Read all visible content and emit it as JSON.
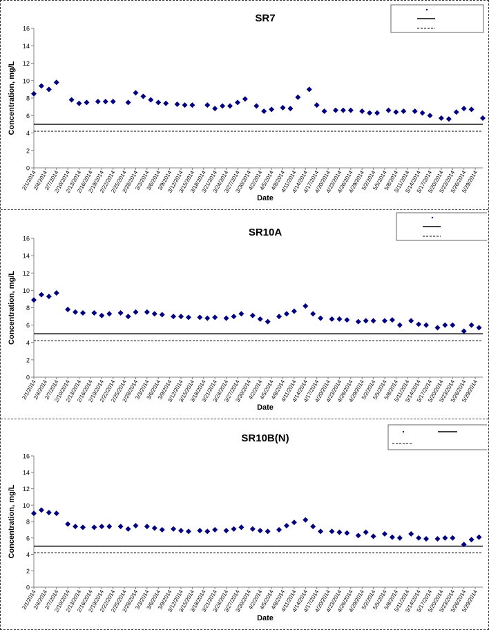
{
  "colors": {
    "marker": "#000080",
    "axis": "#808080",
    "line": "#000000"
  },
  "chart_data": [
    {
      "type": "scatter",
      "title": "SR7",
      "xlabel": "Date",
      "ylabel": "Concentration, mg/L",
      "ylim": [
        0,
        16
      ],
      "yticks": [
        0,
        2,
        4,
        6,
        8,
        10,
        12,
        14,
        16
      ],
      "grid": false,
      "legend_position": "top-right",
      "x_tick_labels": [
        "2/1/2014",
        "2/4/2014",
        "2/7/2014",
        "2/10/2014",
        "2/13/2014",
        "2/16/2014",
        "2/19/2014",
        "2/22/2014",
        "2/25/2014",
        "2/28/2014",
        "3/3/2014",
        "3/6/2014",
        "3/9/2014",
        "3/12/2014",
        "3/15/2014",
        "3/18/2014",
        "3/21/2014",
        "3/24/2014",
        "3/27/2014",
        "3/30/2014",
        "4/2/2014",
        "4/5/2014",
        "4/8/2014",
        "4/11/2014",
        "4/14/2014",
        "4/17/2014",
        "4/20/2014",
        "4/23/2014",
        "4/26/2014",
        "4/29/2014",
        "5/2/2014",
        "5/5/2014",
        "5/8/2014",
        "5/11/2014",
        "5/14/2014",
        "5/17/2014",
        "5/20/2014",
        "5/23/2014",
        "5/26/2014",
        "5/29/2014"
      ],
      "x_range": [
        "2/1/2014",
        "5/31/2014"
      ],
      "reference_lines": [
        {
          "value": 5,
          "style": "solid"
        },
        {
          "value": 4.2,
          "style": "dashed"
        }
      ],
      "series": [
        {
          "x": [
            "2/1/2014",
            "2/3/2014",
            "2/5/2014",
            "2/7/2014",
            "2/11/2014",
            "2/13/2014",
            "2/15/2014",
            "2/18/2014",
            "2/20/2014",
            "2/22/2014",
            "2/26/2014",
            "2/28/2014",
            "3/2/2014",
            "3/4/2014",
            "3/6/2014",
            "3/8/2014",
            "3/11/2014",
            "3/13/2014",
            "3/15/2014",
            "3/19/2014",
            "3/21/2014",
            "3/23/2014",
            "3/25/2014",
            "3/27/2014",
            "3/29/2014",
            "4/1/2014",
            "4/3/2014",
            "4/5/2014",
            "4/8/2014",
            "4/10/2014",
            "4/12/2014",
            "4/15/2014",
            "4/17/2014",
            "4/19/2014",
            "4/22/2014",
            "4/24/2014",
            "4/26/2014",
            "4/29/2014",
            "5/1/2014",
            "5/3/2014",
            "5/6/2014",
            "5/8/2014",
            "5/10/2014",
            "5/13/2014",
            "5/15/2014",
            "5/17/2014",
            "5/20/2014",
            "5/22/2014",
            "5/24/2014",
            "5/26/2014",
            "5/28/2014",
            "5/31/2014"
          ],
          "y": [
            8.5,
            9.4,
            9.0,
            9.8,
            7.8,
            7.4,
            7.5,
            7.6,
            7.6,
            7.6,
            7.5,
            8.6,
            8.2,
            7.8,
            7.5,
            7.4,
            7.3,
            7.2,
            7.2,
            7.2,
            6.8,
            7.1,
            7.1,
            7.5,
            7.9,
            7.1,
            6.5,
            6.7,
            6.9,
            6.8,
            8.1,
            9.0,
            7.2,
            6.5,
            6.6,
            6.6,
            6.6,
            6.5,
            6.3,
            6.3,
            6.6,
            6.4,
            6.5,
            6.5,
            6.3,
            6.0,
            5.7,
            5.6,
            6.4,
            6.8,
            6.7,
            5.7
          ]
        }
      ]
    },
    {
      "type": "scatter",
      "title": "SR10A",
      "xlabel": "Date",
      "ylabel": "Concentration, mg/L",
      "ylim": [
        0,
        16
      ],
      "yticks": [
        0,
        2,
        4,
        6,
        8,
        10,
        12,
        14,
        16
      ],
      "grid": false,
      "legend_position": "top-right",
      "x_tick_labels": [
        "2/1/2014",
        "2/4/2014",
        "2/7/2014",
        "2/10/2014",
        "2/13/2014",
        "2/16/2014",
        "2/19/2014",
        "2/22/2014",
        "2/25/2014",
        "2/28/2014",
        "3/3/2014",
        "3/6/2014",
        "3/9/2014",
        "3/12/2014",
        "3/15/2014",
        "3/18/2014",
        "3/21/2014",
        "3/24/2014",
        "3/27/2014",
        "3/30/2014",
        "4/2/2014",
        "4/5/2014",
        "4/8/2014",
        "4/11/2014",
        "4/14/2014",
        "4/17/2014",
        "4/20/2014",
        "4/23/2014",
        "4/26/2014",
        "4/29/2014",
        "5/2/2014",
        "5/5/2014",
        "5/8/2014",
        "5/11/2014",
        "5/14/2014",
        "5/17/2014",
        "5/20/2014",
        "5/23/2014",
        "5/26/2014",
        "5/29/2014"
      ],
      "x_range": [
        "2/1/2014",
        "5/31/2014"
      ],
      "reference_lines": [
        {
          "value": 5,
          "style": "solid"
        },
        {
          "value": 4.2,
          "style": "dashed"
        }
      ],
      "series": [
        {
          "x": [
            "2/1/2014",
            "2/3/2014",
            "2/5/2014",
            "2/7/2014",
            "2/10/2014",
            "2/12/2014",
            "2/14/2014",
            "2/17/2014",
            "2/19/2014",
            "2/21/2014",
            "2/24/2014",
            "2/26/2014",
            "2/28/2014",
            "3/3/2014",
            "3/5/2014",
            "3/7/2014",
            "3/10/2014",
            "3/12/2014",
            "3/14/2014",
            "3/17/2014",
            "3/19/2014",
            "3/21/2014",
            "3/24/2014",
            "3/26/2014",
            "3/28/2014",
            "3/31/2014",
            "4/2/2014",
            "4/4/2014",
            "4/7/2014",
            "4/9/2014",
            "4/11/2014",
            "4/14/2014",
            "4/16/2014",
            "4/18/2014",
            "4/21/2014",
            "4/23/2014",
            "4/25/2014",
            "4/28/2014",
            "4/30/2014",
            "5/2/2014",
            "5/5/2014",
            "5/7/2014",
            "5/9/2014",
            "5/12/2014",
            "5/14/2014",
            "5/16/2014",
            "5/19/2014",
            "5/21/2014",
            "5/23/2014",
            "5/26/2014",
            "5/28/2014",
            "5/30/2014"
          ],
          "y": [
            8.9,
            9.5,
            9.3,
            9.7,
            7.8,
            7.5,
            7.4,
            7.4,
            7.1,
            7.3,
            7.4,
            7.0,
            7.5,
            7.5,
            7.3,
            7.2,
            7.0,
            7.0,
            6.9,
            6.9,
            6.8,
            6.9,
            6.8,
            7.0,
            7.3,
            7.1,
            6.7,
            6.4,
            7.0,
            7.3,
            7.6,
            8.2,
            7.3,
            6.8,
            6.7,
            6.7,
            6.6,
            6.4,
            6.5,
            6.5,
            6.5,
            6.6,
            6.0,
            6.5,
            6.1,
            6.0,
            5.7,
            6.0,
            6.0,
            5.3,
            6.0,
            5.7
          ]
        }
      ]
    },
    {
      "type": "scatter",
      "title": "SR10B(N)",
      "xlabel": "Date",
      "ylabel": "Concentration, mg/L",
      "ylim": [
        0,
        16
      ],
      "yticks": [
        0,
        2,
        4,
        6,
        8,
        10,
        12,
        14,
        16
      ],
      "grid": false,
      "legend_position": "top-right",
      "x_tick_labels": [
        "2/1/2014",
        "2/4/2014",
        "2/7/2014",
        "2/10/2014",
        "2/13/2014",
        "2/16/2014",
        "2/19/2014",
        "2/22/2014",
        "2/25/2014",
        "2/28/2014",
        "3/3/2014",
        "3/6/2014",
        "3/9/2014",
        "3/12/2014",
        "3/15/2014",
        "3/18/2014",
        "3/21/2014",
        "3/24/2014",
        "3/27/2014",
        "3/30/2014",
        "4/2/2014",
        "4/5/2014",
        "4/8/2014",
        "4/11/2014",
        "4/14/2014",
        "4/17/2014",
        "4/20/2014",
        "4/23/2014",
        "4/26/2014",
        "4/29/2014",
        "5/2/2014",
        "5/5/2014",
        "5/8/2014",
        "5/11/2014",
        "5/14/2014",
        "5/17/2014",
        "5/20/2014",
        "5/23/2014",
        "5/26/2014",
        "5/29/2014"
      ],
      "x_range": [
        "2/1/2014",
        "5/31/2014"
      ],
      "reference_lines": [
        {
          "value": 5,
          "style": "solid"
        },
        {
          "value": 4.2,
          "style": "dashed"
        }
      ],
      "series": [
        {
          "x": [
            "2/1/2014",
            "2/3/2014",
            "2/5/2014",
            "2/7/2014",
            "2/10/2014",
            "2/12/2014",
            "2/14/2014",
            "2/17/2014",
            "2/19/2014",
            "2/21/2014",
            "2/24/2014",
            "2/26/2014",
            "2/28/2014",
            "3/3/2014",
            "3/5/2014",
            "3/7/2014",
            "3/10/2014",
            "3/12/2014",
            "3/14/2014",
            "3/17/2014",
            "3/19/2014",
            "3/21/2014",
            "3/24/2014",
            "3/26/2014",
            "3/28/2014",
            "3/31/2014",
            "4/2/2014",
            "4/4/2014",
            "4/7/2014",
            "4/9/2014",
            "4/11/2014",
            "4/14/2014",
            "4/16/2014",
            "4/18/2014",
            "4/21/2014",
            "4/23/2014",
            "4/25/2014",
            "4/28/2014",
            "4/30/2014",
            "5/2/2014",
            "5/5/2014",
            "5/7/2014",
            "5/9/2014",
            "5/12/2014",
            "5/14/2014",
            "5/16/2014",
            "5/19/2014",
            "5/21/2014",
            "5/23/2014",
            "5/26/2014",
            "5/28/2014",
            "5/30/2014"
          ],
          "y": [
            9.0,
            9.4,
            9.1,
            9.0,
            7.7,
            7.4,
            7.3,
            7.3,
            7.4,
            7.4,
            7.4,
            7.1,
            7.5,
            7.4,
            7.2,
            7.0,
            7.1,
            6.9,
            6.8,
            6.9,
            6.8,
            7.0,
            6.9,
            7.1,
            7.3,
            7.1,
            6.9,
            6.8,
            7.0,
            7.5,
            7.9,
            8.2,
            7.4,
            6.8,
            6.8,
            6.7,
            6.6,
            6.3,
            6.7,
            6.2,
            6.5,
            6.1,
            6.0,
            6.5,
            6.0,
            5.9,
            5.9,
            6.0,
            6.0,
            5.2,
            5.8,
            6.1
          ]
        }
      ]
    }
  ]
}
